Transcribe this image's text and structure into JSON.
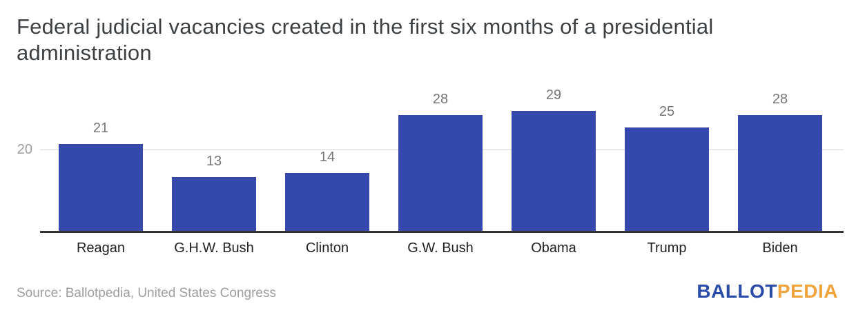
{
  "title": "Federal judicial vacancies created in the first six months of a presidential administration",
  "chart_data": {
    "type": "bar",
    "title": "Federal judicial vacancies created in the first six months of a presidential administration",
    "categories": [
      "Reagan",
      "G.H.W. Bush",
      "Clinton",
      "G.W. Bush",
      "Obama",
      "Trump",
      "Biden"
    ],
    "values": [
      21,
      13,
      14,
      28,
      29,
      25,
      28
    ],
    "xlabel": "",
    "ylabel": "",
    "ylim": [
      0,
      36
    ],
    "yticks": [
      "20"
    ],
    "grid": "single horizontal gridline at y=20",
    "legend": "none",
    "value_labels_shown": true
  },
  "footer": {
    "source": "Source: Ballotpedia, United States Congress",
    "logo_part1": "BALLOT",
    "logo_part2": "PEDIA"
  },
  "colors": {
    "bar": "#3549AC",
    "value_label": "#757575",
    "axis_tick": "#9E9E9E",
    "category_label": "#212121",
    "title": "#3C4043",
    "source": "#9E9E9E",
    "gridline": "#E8E8E8",
    "axis_line": "#333333",
    "logo_blue": "#2B4BA8",
    "logo_orange": "#F1A33C"
  }
}
